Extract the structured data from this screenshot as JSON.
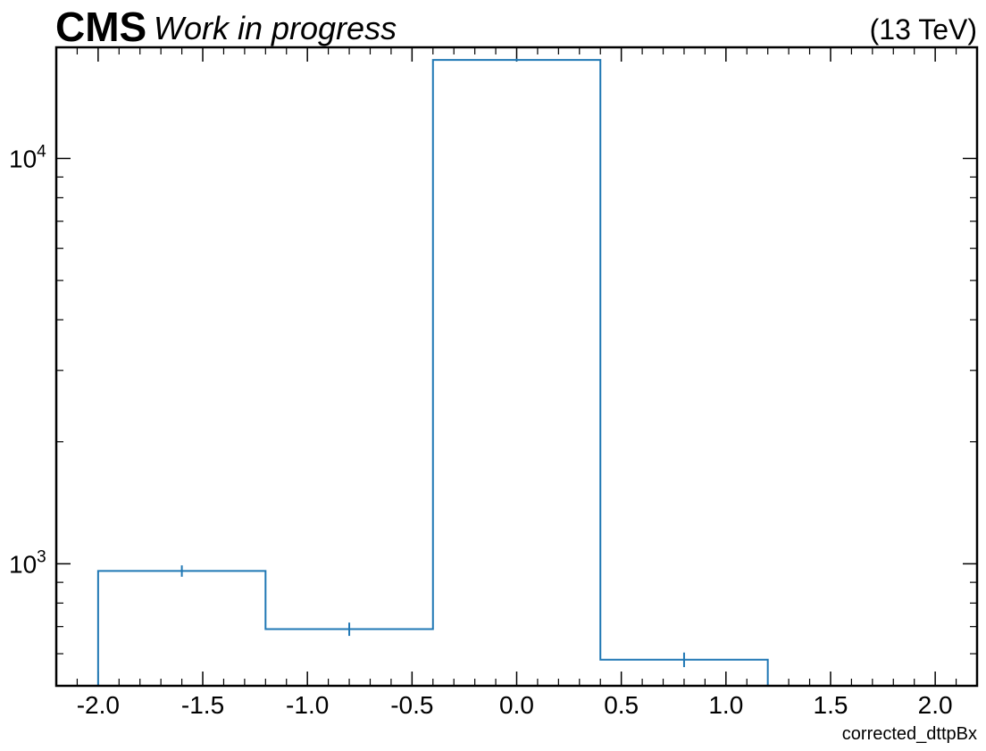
{
  "header": {
    "experiment": "CMS",
    "status": "Work in progress",
    "energy": "(13 TeV)"
  },
  "colors": {
    "series": "#1f77b4",
    "axis": "#000000"
  },
  "chart_data": {
    "type": "histogram",
    "title": "",
    "xlabel": "corrected_dttpBx",
    "ylabel": "",
    "yscale": "log",
    "xlim": [
      -2.2,
      2.2
    ],
    "ylim": [
      500,
      18800
    ],
    "bin_edges": [
      -2.0,
      -1.2,
      -0.4,
      0.4,
      1.2
    ],
    "bin_centers": [
      -1.6,
      -0.8,
      0.0,
      0.8
    ],
    "values": [
      960,
      690,
      17500,
      580
    ],
    "errors": [
      31,
      26,
      132,
      24
    ],
    "x_ticks": [
      -2.0,
      -1.5,
      -1.0,
      -0.5,
      0.0,
      0.5,
      1.0,
      1.5,
      2.0
    ],
    "x_tick_labels": [
      "-2.0",
      "-1.5",
      "-1.0",
      "-0.5",
      "0.0",
      "0.5",
      "1.0",
      "1.5",
      "2.0"
    ],
    "y_ticks": [
      1000,
      10000
    ],
    "y_tick_labels": [
      {
        "base": "10",
        "exp": "3"
      },
      {
        "base": "10",
        "exp": "4"
      }
    ],
    "grid": false,
    "legend": "none"
  }
}
